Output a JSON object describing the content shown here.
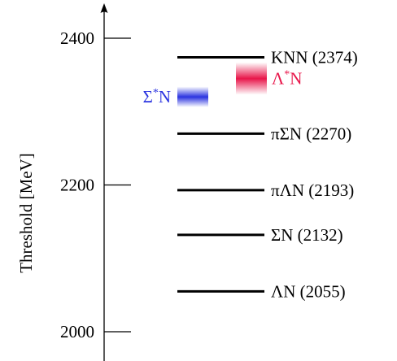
{
  "axis": {
    "label": "Threshold [MeV]",
    "range": [
      1975,
      2450
    ],
    "ticks": [
      {
        "value": 2000,
        "label": "2000"
      },
      {
        "value": 2200,
        "label": "2200"
      },
      {
        "value": 2400,
        "label": "2400"
      }
    ]
  },
  "thresholds": [
    {
      "value": 2374,
      "label": "KNN (2374)"
    },
    {
      "value": 2270,
      "label": "πΣN (2270)"
    },
    {
      "value": 2193,
      "label": "πΛN (2193)"
    },
    {
      "value": 2132,
      "label": "ΣN (2132)"
    },
    {
      "value": 2055,
      "label": "ΛN (2055)"
    }
  ],
  "bands": [
    {
      "id": "sigma-star-n",
      "base": "Σ",
      "sup": "*",
      "tail": "N",
      "center": 2320,
      "half_width": 14,
      "color": "#2b34e0"
    },
    {
      "id": "lambda-star-n",
      "base": "Λ",
      "sup": "*",
      "tail": "N",
      "center": 2345,
      "half_width": 22,
      "color": "#e8164a"
    }
  ]
}
